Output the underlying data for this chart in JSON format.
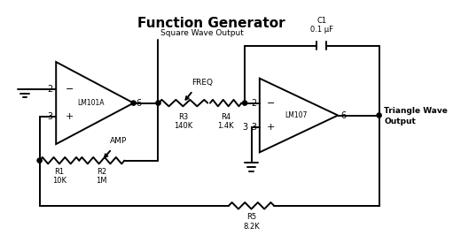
{
  "title": "Function Generator",
  "bg": "#ffffff",
  "lc": "#000000",
  "lw": 1.4,
  "title_fs": 11,
  "label_fs": 6.5,
  "pin_fs": 7,
  "comp_fs": 6,
  "lm101a": "LM101A",
  "lm107": "LM107",
  "sq_out": "Square Wave Output",
  "tri_out_1": "Triangle Wave",
  "tri_out_2": "Output",
  "freq": "FREQ",
  "amp": "AMP",
  "r1_lbl": "R1\n10K",
  "r2_lbl": "R2\n1M",
  "r3_lbl": "R3\n140K",
  "r4_lbl": "R4\n1.4K",
  "r5_lbl": "R5\n8.2K",
  "c1_lbl": "C1\n0.1 μF"
}
